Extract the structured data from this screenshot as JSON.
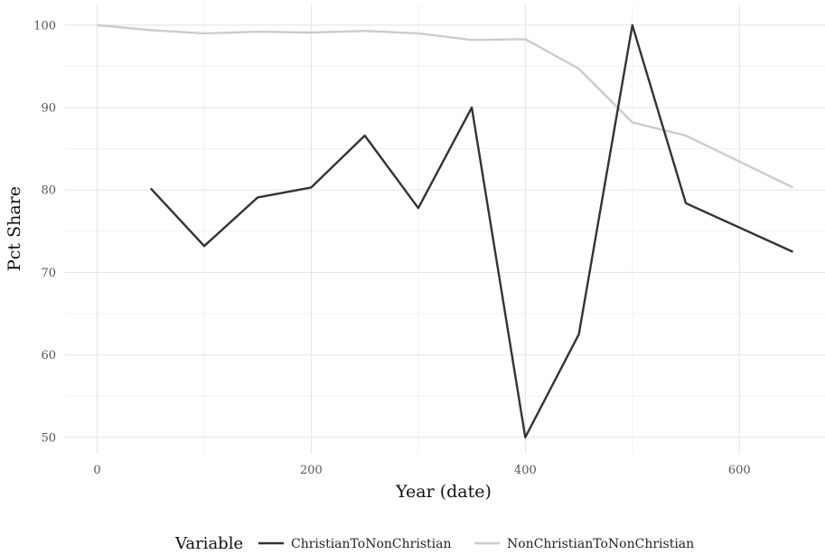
{
  "chart_data": {
    "type": "line",
    "title": "",
    "xlabel": "Year (date)",
    "ylabel": "Pct Share",
    "xlim": [
      -30,
      680
    ],
    "ylim": [
      48,
      102.5
    ],
    "x_ticks": [
      0,
      200,
      400,
      600
    ],
    "y_ticks": [
      50,
      60,
      70,
      80,
      90,
      100
    ],
    "grid": true,
    "legend": {
      "title": "Variable",
      "position": "bottom"
    },
    "series": [
      {
        "name": "ChristianToNonChristian",
        "color": "#333333",
        "x": [
          50,
          100,
          150,
          200,
          250,
          300,
          350,
          400,
          450,
          500,
          550,
          650
        ],
        "y": [
          80.2,
          73.2,
          79.1,
          80.3,
          86.6,
          77.8,
          90.0,
          50.0,
          62.5,
          100.0,
          78.4,
          72.5
        ]
      },
      {
        "name": "NonChristianToNonChristian",
        "color": "#cccccc",
        "x": [
          0,
          50,
          100,
          150,
          200,
          250,
          300,
          350,
          400,
          450,
          500,
          550,
          650
        ],
        "y": [
          100.0,
          99.4,
          99.0,
          99.2,
          99.1,
          99.3,
          99.0,
          98.2,
          98.3,
          94.7,
          88.2,
          86.6,
          80.3
        ]
      }
    ]
  }
}
